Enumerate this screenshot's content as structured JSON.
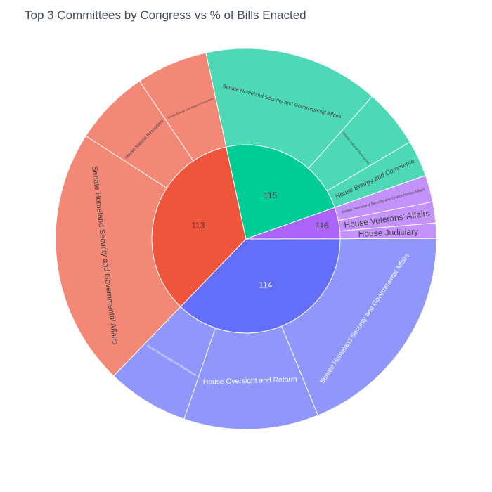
{
  "chart_data": {
    "type": "sunburst",
    "title": "Top 3 Committees by Congress vs % of Bills Enacted",
    "colors": {
      "114": [
        "#636efa",
        "#8f97fb"
      ],
      "113": [
        "#ef553b",
        "#f38876"
      ],
      "115": [
        "#00cc96",
        "#4dd9b6"
      ],
      "116": [
        "#ab63fa",
        "#c492fb"
      ]
    },
    "parents": [
      {
        "label": "114",
        "value": 37.5,
        "children": [
          {
            "label": "Senate Homeland Security and Governmental Affairs",
            "value": 19.0
          },
          {
            "label": "House Oversight and Reform",
            "value": 11.5
          },
          {
            "label": "House Transportation and Infrastructure",
            "value": 7.0
          }
        ]
      },
      {
        "label": "113",
        "value": 34.6,
        "children": [
          {
            "label": "Senate Homeland Security and Governmental Affairs",
            "value": 22.0
          },
          {
            "label": "House Natural Resources",
            "value": 6.5
          },
          {
            "label": "Senate Energy and Natural Resources",
            "value": 6.1
          }
        ]
      },
      {
        "label": "115",
        "value": 23.1,
        "children": [
          {
            "label": "Senate Homeland Security and Governmental Affairs",
            "value": 15.0
          },
          {
            "label": "House Natural Resources",
            "value": 5.0
          },
          {
            "label": "House Energy and Commerce",
            "value": 3.1
          }
        ]
      },
      {
        "label": "116",
        "value": 5.4,
        "children": [
          {
            "label": "Senate Homeland Security and Governmental Affairs",
            "value": 2.3
          },
          {
            "label": "House Veterans' Affairs",
            "value": 1.8
          },
          {
            "label": "House Judiciary",
            "value": 1.3
          }
        ]
      }
    ]
  }
}
